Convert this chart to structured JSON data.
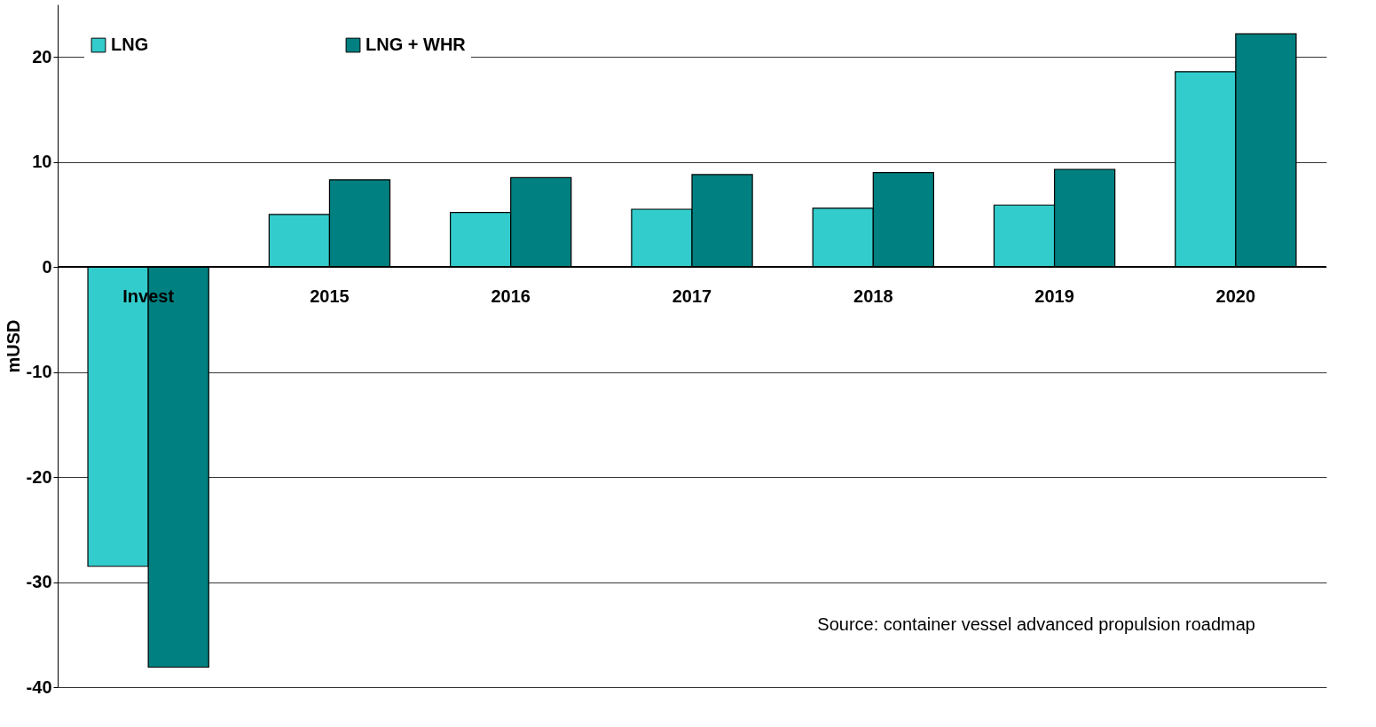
{
  "chart_data": {
    "type": "bar",
    "ylabel": "mUSD",
    "categories": [
      "Invest",
      "2015",
      "2016",
      "2017",
      "2018",
      "2019",
      "2020"
    ],
    "series": [
      {
        "name": "LNG",
        "color": "#33cccc",
        "values": [
          -28.5,
          5.0,
          5.2,
          5.5,
          5.6,
          5.9,
          18.6
        ]
      },
      {
        "name": "LNG + WHR",
        "color": "#008080",
        "values": [
          -38.1,
          8.3,
          8.5,
          8.8,
          9.0,
          9.3,
          22.2
        ]
      }
    ],
    "ylim": [
      -40,
      25
    ],
    "yticks": [
      -40,
      -30,
      -20,
      -10,
      0,
      10,
      20
    ],
    "grid": "y",
    "legend": "top left",
    "annotations": [
      "Source: container vessel advanced propulsion roadmap"
    ]
  }
}
